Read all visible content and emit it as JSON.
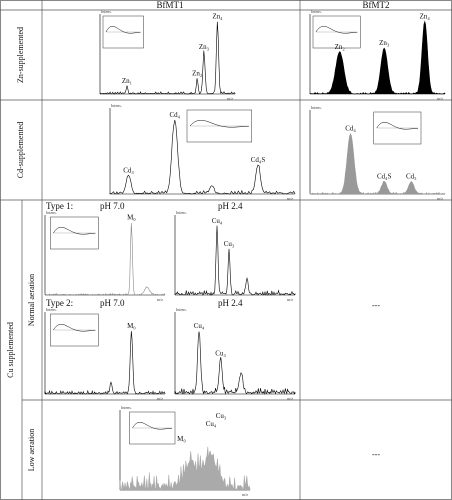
{
  "header": {
    "col1": "BfMT1",
    "col2": "BfMT2"
  },
  "rows": {
    "zn": "Zn-supplemented",
    "cd": "Cd-supplemented",
    "cu": "Cu supplemented",
    "normal": "Normal aeration",
    "low": "Low aeration"
  },
  "cu_normal": {
    "type1": "Type 1:",
    "type2": "Type 2:",
    "ph_neutral": "pH 7.0",
    "ph_acid": "pH 2.4"
  },
  "panels": [
    {
      "peaks": [
        "Zn₄",
        "Zn₃",
        "Zn₂",
        "Zn₁"
      ]
    },
    {
      "peaks": [
        "Zn₄",
        "Zn₃",
        "Zn₂"
      ]
    },
    {
      "peaks": [
        "Cd₄",
        "Cd₃",
        "Cd₄S"
      ]
    },
    {
      "peaks": [
        "Cd₄",
        "Cd₄S",
        "Cd₅"
      ]
    },
    {
      "peaks": [
        "M₀"
      ]
    },
    {
      "peaks": [
        "Cu₄",
        "Cu₃"
      ]
    },
    {
      "peaks": [
        "M₀"
      ]
    },
    {
      "peaks": [
        "Cu₄",
        "Cu₃"
      ]
    },
    {
      "peaks": [
        "M₀",
        "Cu₄",
        "Cu₃"
      ]
    }
  ],
  "empty": "---",
  "axis": {
    "intensity": "Intens.",
    "mz": "m/z"
  }
}
